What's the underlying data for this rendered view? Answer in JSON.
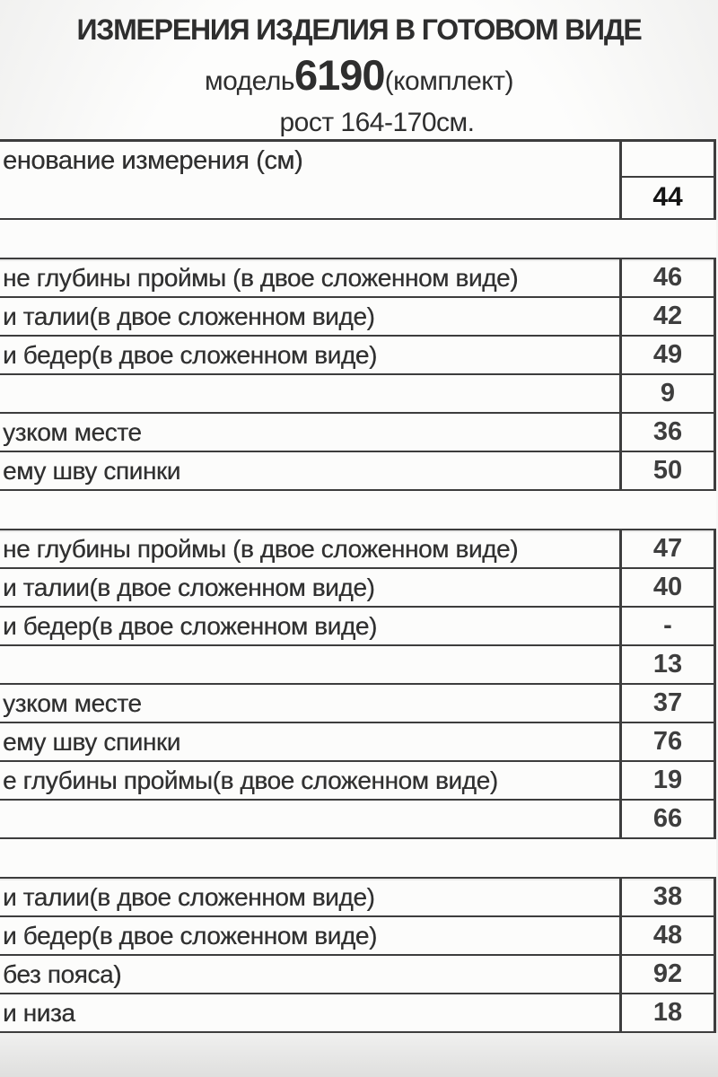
{
  "header": {
    "title": "ИЗМЕРЕНИЯ ИЗДЕЛИЯ В ГОТОВОМ ВИДЕ",
    "model_prefix": "модель",
    "model_number": "6190",
    "model_suffix": "(комплект)",
    "height_range": "рост 164-170см."
  },
  "table": {
    "header_label": "енование измерения (см)",
    "size": "44",
    "rows": [
      {
        "spacer": true
      },
      {
        "label": "не глубины проймы (в двое сложенном виде)",
        "value": "46"
      },
      {
        "label": "и талии(в двое сложенном виде)",
        "value": "42"
      },
      {
        "label": "и бедер(в двое сложенном виде)",
        "value": "49"
      },
      {
        "label": "",
        "value": "9"
      },
      {
        "label": "узком месте",
        "value": "36"
      },
      {
        "label": "ему шву спинки",
        "value": "50"
      },
      {
        "spacer": true
      },
      {
        "label": "не глубины проймы (в двое сложенном виде)",
        "value": "47"
      },
      {
        "label": "и талии(в двое сложенном виде)",
        "value": "40"
      },
      {
        "label": "и бедер(в двое сложенном виде)",
        "value": "-"
      },
      {
        "label": "",
        "value": "13"
      },
      {
        "label": "узком месте",
        "value": "37"
      },
      {
        "label": "ему шву спинки",
        "value": "76"
      },
      {
        "label": "е глубины проймы(в двое сложенном виде)",
        "value": "19"
      },
      {
        "label": "",
        "value": "66"
      },
      {
        "spacer": true
      },
      {
        "label": "и талии(в двое сложенном виде)",
        "value": "38"
      },
      {
        "label": "и бедер(в двое сложенном виде)",
        "value": "48"
      },
      {
        "label": "без пояса)",
        "value": "92"
      },
      {
        "label": "и низа",
        "value": "18"
      }
    ]
  }
}
